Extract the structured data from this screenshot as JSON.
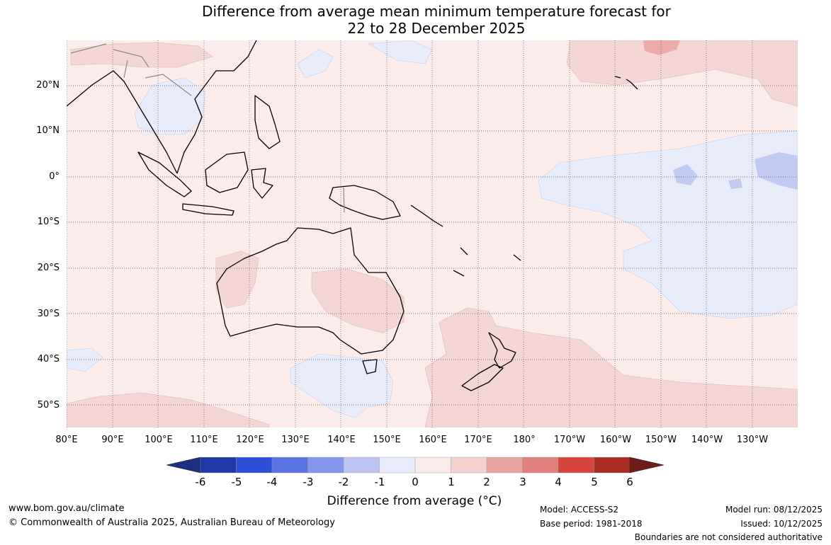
{
  "title": {
    "line1": "Difference from average mean minimum temperature forecast for",
    "line2": "22 to 28 December 2025"
  },
  "map": {
    "lat_labels": [
      "20°N",
      "10°N",
      "0°",
      "10°S",
      "20°S",
      "30°S",
      "40°S",
      "50°S"
    ],
    "lon_labels": [
      "80°E",
      "90°E",
      "100°E",
      "110°E",
      "120°E",
      "130°E",
      "140°E",
      "150°E",
      "160°E",
      "170°E",
      "180°",
      "170°W",
      "160°W",
      "150°W",
      "140°W",
      "130°W"
    ],
    "colors": {
      "ocean_base": "#fbebea",
      "warm_1_2": "#f4d7d5",
      "warm_2_3": "#eeaaa6",
      "cool_0_m1": "#e8ecfa",
      "cool_m1_m2": "#c3caf2",
      "coastline": "#000000",
      "border": "#888888",
      "grid": "#555555"
    }
  },
  "colorbar": {
    "ticks": [
      "-6",
      "-5",
      "-4",
      "-3",
      "-2",
      "-1",
      "0",
      "1",
      "2",
      "3",
      "4",
      "5",
      "6"
    ],
    "colors": [
      "#1d2f80",
      "#2338a8",
      "#2d4fd8",
      "#5a72e2",
      "#8396ea",
      "#bcc4f2",
      "#e8ebfb",
      "#fbebea",
      "#f4d2d0",
      "#eaa5a0",
      "#e0807a",
      "#d8453d",
      "#a82b24",
      "#6e1c17"
    ],
    "label": "Difference from average (°C)"
  },
  "footer": {
    "website": "www.bom.gov.au/climate",
    "copyright": "© Commonwealth of Australia 2025, Australian Bureau of Meteorology",
    "model": "Model: ACCESS-S2",
    "base_period": "Base period: 1981-2018",
    "model_run": "Model run: 08/12/2025",
    "issued": "Issued: 10/12/2025",
    "disclaimer": "Boundaries are not considered authoritative"
  }
}
